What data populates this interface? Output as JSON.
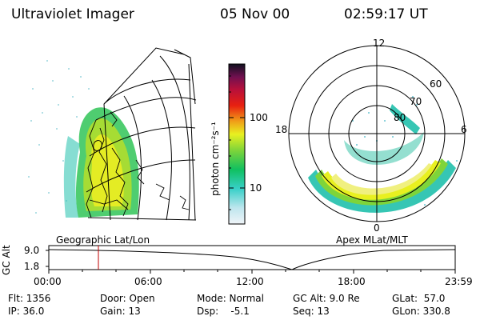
{
  "header": {
    "instrument": "Ultraviolet Imager",
    "date": "05 Nov 00",
    "time": "02:59:17 UT"
  },
  "colorbar": {
    "label": "photon cm⁻²s⁻¹",
    "ticks": [
      "100",
      "10"
    ]
  },
  "left_panel": {
    "caption": "Geographic Lat/Lon"
  },
  "right_panel": {
    "caption": "Apex MLat/MLT",
    "mlt_labels": {
      "top": "12",
      "left": "18",
      "right": "6",
      "bottom": "0"
    },
    "lat_labels": [
      "60",
      "70",
      "80"
    ]
  },
  "altitude_plot": {
    "ylabel": "GC Alt",
    "yticks": [
      "9.0",
      "1.8"
    ],
    "xticks": [
      "00:00",
      "06:00",
      "12:00",
      "18:00",
      "23:59"
    ],
    "marker_time": "02:59"
  },
  "info": {
    "flt": "Flt: 1356",
    "ip": "IP: 36.0",
    "door": "Door: Open",
    "gain": "Gain: 13",
    "mode": "Mode: Normal",
    "dsp": "Dsp:    -5.1",
    "gcalt": "GC Alt: 9.0 Re",
    "seq": "Seq: 13",
    "glat": "GLat:  57.0",
    "glon": "GLon: 330.8"
  }
}
